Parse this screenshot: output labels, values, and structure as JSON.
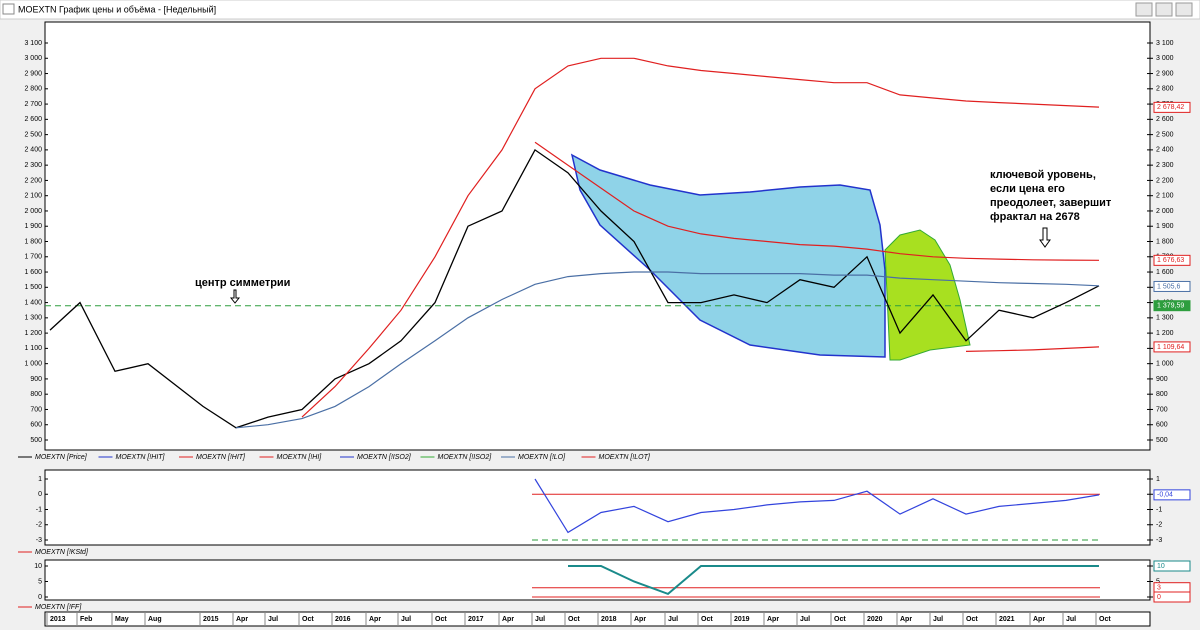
{
  "window": {
    "title": "MOEXTN График цены и объёма - [Недельный]"
  },
  "annotations": [
    {
      "text": "центр симметрии"
    },
    {
      "lines": [
        "ключевой уровень,",
        "если цена его",
        "преодолеет, завершит",
        "фрактал на 2678"
      ]
    }
  ],
  "legend": [
    {
      "name": "MOEXTN [Price]",
      "color": "#000000"
    },
    {
      "name": "MOEXTN [!HIT]",
      "color": "#2233cc"
    },
    {
      "name": "MOEXTN [!HIT]",
      "color": "#e02020"
    },
    {
      "name": "MOEXTN [!HI]",
      "color": "#e02020"
    },
    {
      "name": "MOEXTN [!ISO2]",
      "color": "#2233cc"
    },
    {
      "name": "MOEXTN [!ISO2]",
      "color": "#33aa33"
    },
    {
      "name": "MOEXTN [!LO]",
      "color": "#4a6fa5"
    },
    {
      "name": "MOEXTN [!LOT]",
      "color": "#e02020"
    }
  ],
  "chart_data": [
    {
      "type": "line",
      "categories": [
        "2013",
        "Feb",
        "May",
        "Aug",
        "2015",
        "Apr",
        "Jul",
        "Oct",
        "2016",
        "Apr",
        "Jul",
        "Oct",
        "2017",
        "Apr",
        "Jul",
        "Oct",
        "2018",
        "Apr",
        "Jul",
        "Oct",
        "2019",
        "Apr",
        "Jul",
        "Oct",
        "2020",
        "Apr",
        "Jul",
        "Oct",
        "2021",
        "Apr",
        "Jul",
        "Oct"
      ],
      "ylim": [
        500,
        3100
      ],
      "yticks": [
        500,
        600,
        700,
        800,
        900,
        {
          "value": 1000,
          "label": "1 000"
        },
        {
          "value": 1100,
          "label": "1 100"
        },
        {
          "value": 1200,
          "label": "1 200"
        },
        {
          "value": 1300,
          "label": "1 300"
        },
        {
          "value": 1400,
          "label": "1 400"
        },
        {
          "value": 1500,
          "label": "1 500"
        },
        {
          "value": 1600,
          "label": "1 600"
        },
        {
          "value": 1700,
          "label": "1 700"
        },
        {
          "value": 1800,
          "label": "1 800"
        },
        {
          "value": 1900,
          "label": "1 900"
        },
        {
          "value": 2000,
          "label": "2 000"
        },
        {
          "value": 2100,
          "label": "2 100"
        },
        {
          "value": 2200,
          "label": "2 200"
        },
        {
          "value": 2300,
          "label": "2 300"
        },
        {
          "value": 2400,
          "label": "2 400"
        },
        {
          "value": 2500,
          "label": "2 500"
        },
        {
          "value": 2600,
          "label": "2 600"
        },
        {
          "value": 2700,
          "label": "2 700"
        },
        {
          "value": 2800,
          "label": "2 800"
        },
        {
          "value": 2900,
          "label": "2 900"
        },
        {
          "value": 3000,
          "label": "3 000"
        },
        {
          "value": 3100,
          "label": "3 100"
        }
      ],
      "series": [
        {
          "color": "#000000",
          "values": [
            1220,
            1400,
            950,
            1000,
            720,
            580,
            650,
            700,
            900,
            1000,
            1150,
            1400,
            1900,
            2000,
            2400,
            2250,
            2000,
            1800,
            1400,
            1400,
            1450,
            1400,
            1550,
            1500,
            1700,
            1200,
            1450,
            1150,
            1350,
            1300,
            1400,
            1510
          ]
        },
        {
          "color": "#e02020",
          "values": [
            null,
            null,
            null,
            null,
            null,
            null,
            null,
            650,
            850,
            1100,
            1350,
            1700,
            2100,
            2400,
            2800,
            2950,
            3000,
            3000,
            2950,
            2920,
            2900,
            2880,
            2860,
            2840,
            2840,
            2760,
            2740,
            2720,
            2710,
            2700,
            2690,
            2680
          ]
        },
        {
          "color": "#e02020",
          "values": [
            null,
            null,
            null,
            null,
            null,
            null,
            null,
            null,
            null,
            null,
            null,
            null,
            null,
            null,
            2450,
            2300,
            2150,
            2000,
            1900,
            1850,
            1820,
            1800,
            1780,
            1770,
            1750,
            1720,
            1700,
            1690,
            1685,
            1680,
            1678,
            1677
          ]
        },
        {
          "color": "#4a6fa5",
          "values": [
            null,
            null,
            null,
            null,
            null,
            580,
            600,
            640,
            720,
            850,
            1000,
            1150,
            1300,
            1420,
            1520,
            1570,
            1590,
            1600,
            1600,
            1590,
            1590,
            1590,
            1590,
            1580,
            1580,
            1560,
            1550,
            1540,
            1530,
            1525,
            1520,
            1510
          ]
        },
        {
          "color": "#e02020",
          "values": [
            null,
            null,
            null,
            null,
            null,
            null,
            null,
            null,
            null,
            null,
            null,
            null,
            null,
            null,
            null,
            null,
            null,
            null,
            null,
            null,
            null,
            null,
            null,
            null,
            null,
            null,
            null,
            1080,
            1085,
            1090,
            1100,
            1110
          ]
        }
      ],
      "hlines": [
        {
          "value": 1379.59,
          "color": "#2e9e3e",
          "dashed": true
        }
      ],
      "right_labels": [
        {
          "value": 2678.42,
          "label": "2 678,42",
          "color": "#e02020"
        },
        {
          "value": 1676.63,
          "label": "1 676,63",
          "color": "#e02020"
        },
        {
          "value": 1505.6,
          "label": "1 505,6",
          "color": "#4a6fa5"
        },
        {
          "value": 1379.59,
          "label": "1 379,59",
          "color": "#2e9e3e"
        },
        {
          "value": 1109.64,
          "label": "1 109,64",
          "color": "#e02020"
        }
      ]
    },
    {
      "type": "line",
      "legend": "MOEXTN [!KStd]",
      "legend_color": "#e02020",
      "ylim": [
        -3.2,
        1.5
      ],
      "yticks": [
        1,
        0,
        -1,
        -2,
        -3
      ],
      "series": [
        {
          "color": "#3344dd",
          "values": [
            null,
            null,
            null,
            null,
            null,
            null,
            null,
            null,
            null,
            null,
            null,
            null,
            null,
            null,
            1,
            -2.5,
            -1.2,
            -0.8,
            -1.8,
            -1.2,
            -1,
            -0.7,
            -0.5,
            -0.4,
            0.2,
            -1.3,
            -0.3,
            -1.3,
            -0.8,
            -0.6,
            -0.4,
            -0.04
          ]
        }
      ],
      "hlines": [
        {
          "value": 0,
          "color": "#e02020",
          "dashed": false
        },
        {
          "value": -3,
          "color": "#2e9e3e",
          "dashed": true
        }
      ],
      "right_labels": [
        {
          "value": -0.04,
          "label": "-0,04",
          "color": "#3344dd"
        }
      ]
    },
    {
      "type": "line",
      "legend": "MOEXTN [!FF]",
      "legend_color": "#e02020",
      "ylim": [
        -1,
        11
      ],
      "yticks": [
        10,
        5,
        0
      ],
      "series": [
        {
          "color": "#1a8a8a",
          "values": [
            null,
            null,
            null,
            null,
            null,
            null,
            null,
            null,
            null,
            null,
            null,
            null,
            null,
            null,
            null,
            10,
            10,
            5,
            1,
            10,
            10,
            10,
            10,
            10,
            10,
            10,
            10,
            10,
            10,
            10,
            10,
            10
          ]
        }
      ],
      "hlines": [
        {
          "value": 3,
          "color": "#e02020",
          "dashed": false
        },
        {
          "value": 0,
          "color": "#e02020",
          "dashed": false
        }
      ],
      "right_labels": [
        {
          "value": 10,
          "label": "10",
          "color": "#1a8a8a"
        },
        {
          "value": 3,
          "label": "3",
          "color": "#e02020"
        },
        {
          "value": 0,
          "label": "0",
          "color": "#e02020"
        }
      ]
    }
  ]
}
